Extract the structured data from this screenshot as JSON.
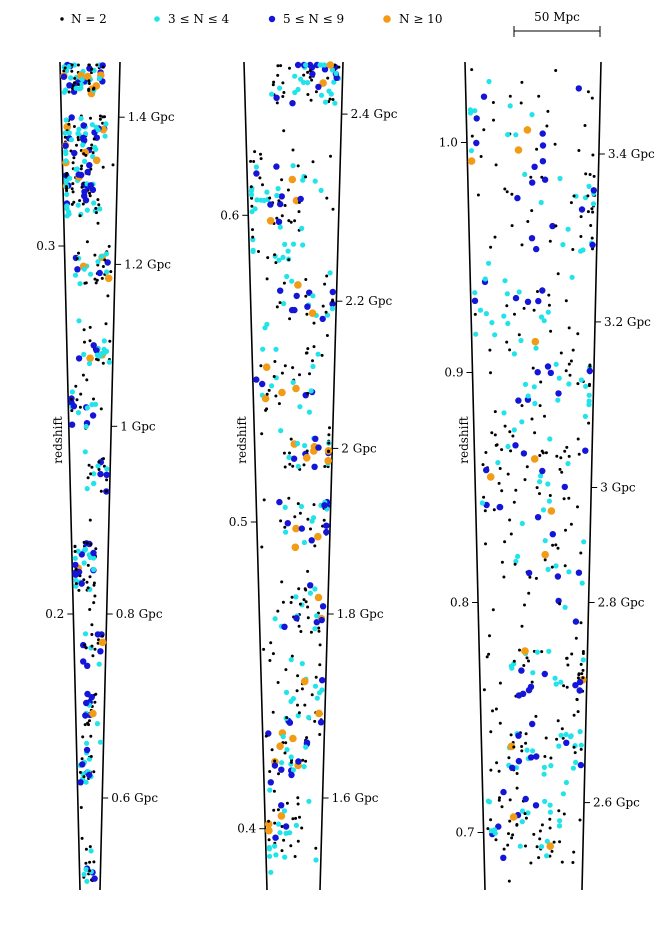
{
  "chart_data": {
    "type": "scatter",
    "colors": {
      "n2": "#000000",
      "n3_4": "#21e3ea",
      "n5_9": "#1515d8",
      "n10plus": "#f19b16"
    },
    "legend": {
      "position": "top",
      "entries": [
        {
          "key": "n2",
          "label": "N = 2"
        },
        {
          "key": "n3_4",
          "label": "3 ≤ N ≤ 4"
        },
        {
          "key": "n5_9",
          "label": "5 ≤ N ≤ 9"
        },
        {
          "key": "n10plus",
          "label": "N ≥ 10"
        }
      ]
    },
    "scale_bar": {
      "label": "50 Mpc"
    },
    "ylabel": "redshift",
    "panels": [
      {
        "name": "panel-1",
        "zlim": [
          0.125,
          0.35
        ],
        "redshift_ticks": [
          {
            "value": 0.2,
            "label": "0.2"
          },
          {
            "value": 0.3,
            "label": "0.3"
          }
        ],
        "distance_ticks": [
          {
            "z": 0.15,
            "label": "0.6 Gpc"
          },
          {
            "z": 0.2,
            "label": "0.8 Gpc"
          },
          {
            "z": 0.251,
            "label": "1 Gpc"
          },
          {
            "z": 0.295,
            "label": "1.2 Gpc"
          },
          {
            "z": 0.335,
            "label": "1.4 Gpc"
          }
        ]
      },
      {
        "name": "panel-2",
        "zlim": [
          0.38,
          0.65
        ],
        "redshift_ticks": [
          {
            "value": 0.4,
            "label": "0.4"
          },
          {
            "value": 0.5,
            "label": "0.5"
          },
          {
            "value": 0.6,
            "label": "0.6"
          }
        ],
        "distance_ticks": [
          {
            "z": 0.41,
            "label": "1.6 Gpc"
          },
          {
            "z": 0.47,
            "label": "1.8 Gpc"
          },
          {
            "z": 0.524,
            "label": "2 Gpc"
          },
          {
            "z": 0.572,
            "label": "2.2 Gpc"
          },
          {
            "z": 0.633,
            "label": "2.4 Gpc"
          }
        ]
      },
      {
        "name": "panel-3",
        "zlim": [
          0.675,
          1.035
        ],
        "redshift_ticks": [
          {
            "value": 0.7,
            "label": "0.7"
          },
          {
            "value": 0.8,
            "label": "0.8"
          },
          {
            "value": 0.9,
            "label": "0.9"
          },
          {
            "value": 1.0,
            "label": "1.0"
          }
        ],
        "distance_ticks": [
          {
            "z": 0.713,
            "label": "2.6 Gpc"
          },
          {
            "z": 0.8,
            "label": "2.8 Gpc"
          },
          {
            "z": 0.85,
            "label": "3 Gpc"
          },
          {
            "z": 0.922,
            "label": "3.2 Gpc"
          },
          {
            "z": 0.995,
            "label": "3.4 Gpc"
          }
        ]
      }
    ]
  }
}
